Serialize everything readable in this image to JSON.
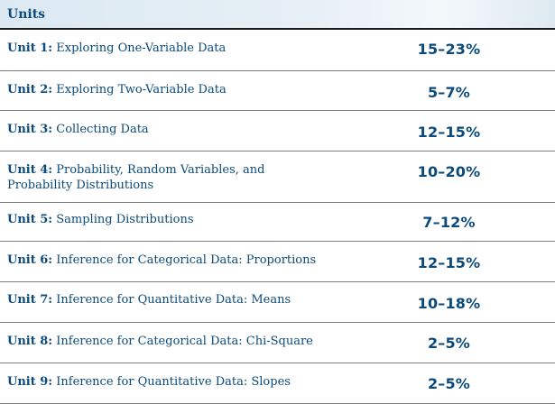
{
  "header": {
    "label": "Units"
  },
  "rows": [
    {
      "unit": "Unit 1:",
      "title": "Exploring One-Variable Data",
      "pct": "15–23%"
    },
    {
      "unit": "Unit 2:",
      "title": "Exploring Two-Variable Data",
      "pct": "5–7%"
    },
    {
      "unit": "Unit 3:",
      "title": "Collecting Data",
      "pct": "12–15%"
    },
    {
      "unit": "Unit 4:",
      "title": "Probability, Random Variables, and\nProbability Distributions",
      "pct": "10–20%"
    },
    {
      "unit": "Unit 5:",
      "title": "Sampling Distributions",
      "pct": "7–12%"
    },
    {
      "unit": "Unit 6:",
      "title": "Inference for Categorical Data: Proportions",
      "pct": "12–15%"
    },
    {
      "unit": "Unit 7:",
      "title": "Inference for Quantitative Data: Means",
      "pct": "10–18%"
    },
    {
      "unit": "Unit 8:",
      "title": "Inference for Categorical Data: Chi-Square",
      "pct": "2–5%"
    },
    {
      "unit": "Unit 9:",
      "title": "Inference for Quantitative Data: Slopes",
      "pct": "2–5%"
    }
  ]
}
